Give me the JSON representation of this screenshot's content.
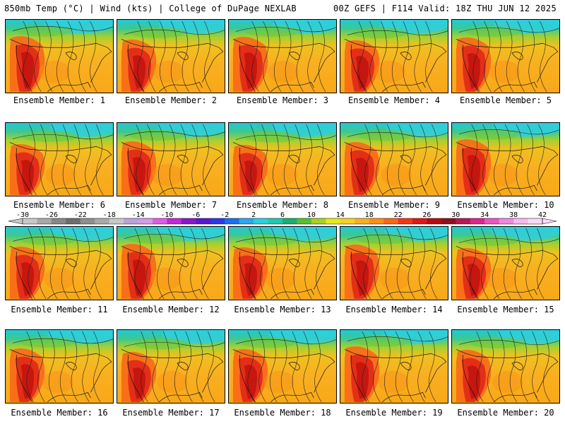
{
  "header": {
    "left": "850mb Temp (°C) | Wind (kts) | College of DuPage NEXLAB",
    "right": "00Z GEFS | F114 Valid: 18Z THU JUN 12 2025"
  },
  "panels": [
    {
      "label": "Ensemble Member: 1"
    },
    {
      "label": "Ensemble Member: 2"
    },
    {
      "label": "Ensemble Member: 3"
    },
    {
      "label": "Ensemble Member: 4"
    },
    {
      "label": "Ensemble Member: 5"
    },
    {
      "label": "Ensemble Member: 6"
    },
    {
      "label": "Ensemble Member: 7"
    },
    {
      "label": "Ensemble Member: 8"
    },
    {
      "label": "Ensemble Member: 9"
    },
    {
      "label": "Ensemble Member: 10"
    },
    {
      "label": "Ensemble Member: 11"
    },
    {
      "label": "Ensemble Member: 12"
    },
    {
      "label": "Ensemble Member: 13"
    },
    {
      "label": "Ensemble Member: 14"
    },
    {
      "label": "Ensemble Member: 15"
    },
    {
      "label": "Ensemble Member: 16"
    },
    {
      "label": "Ensemble Member: 17"
    },
    {
      "label": "Ensemble Member: 18"
    },
    {
      "label": "Ensemble Member: 19"
    },
    {
      "label": "Ensemble Member: 20"
    }
  ],
  "colorbar": {
    "labels": [
      "-30",
      "-26",
      "-22",
      "-18",
      "-14",
      "-10",
      "-6",
      "-2",
      "2",
      "6",
      "10",
      "14",
      "18",
      "22",
      "26",
      "30",
      "34",
      "38",
      "42"
    ],
    "colors": [
      "#c8c8c8",
      "#a8a8a8",
      "#888888",
      "#6e6e6e",
      "#8f8f8f",
      "#a9a9a9",
      "#c8c8c8",
      "#b7a4d8",
      "#d39ce8",
      "#e05ce8",
      "#c028d8",
      "#8a18c8",
      "#5a18d0",
      "#2a3ae8",
      "#1a70f0",
      "#2aa8f0",
      "#28d0e0",
      "#20c8b0",
      "#18b070",
      "#58c030",
      "#a8d020",
      "#e8e818",
      "#f8d020",
      "#f8b020",
      "#f89018",
      "#f86818",
      "#f03818",
      "#e01818",
      "#b80c0c",
      "#901020",
      "#b81858",
      "#d82890",
      "#e858c0",
      "#f088e0",
      "#f8b8f0",
      "#f8d8f8"
    ]
  }
}
